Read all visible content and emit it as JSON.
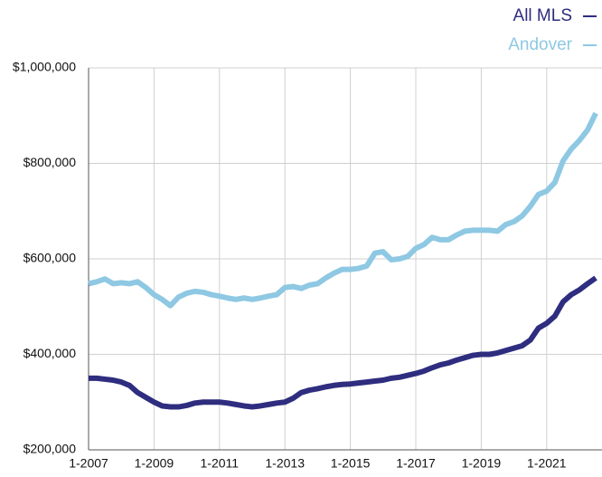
{
  "chart_data": {
    "type": "line",
    "categories": [
      "1-2007",
      null,
      null,
      null,
      null,
      null,
      null,
      null,
      "1-2009",
      null,
      null,
      null,
      null,
      null,
      null,
      null,
      "1-2011",
      null,
      null,
      null,
      null,
      null,
      null,
      null,
      "1-2013",
      null,
      null,
      null,
      null,
      null,
      null,
      null,
      "1-2015",
      null,
      null,
      null,
      null,
      null,
      null,
      null,
      "1-2017",
      null,
      null,
      null,
      null,
      null,
      null,
      null,
      "1-2019",
      null,
      null,
      null,
      null,
      null,
      null,
      null,
      "1-2021",
      null,
      null,
      null,
      null,
      null,
      null
    ],
    "series": [
      {
        "name": "All MLS",
        "color": "#2e2d7f",
        "values": [
          350000,
          350000,
          348000,
          346000,
          342000,
          335000,
          320000,
          310000,
          300000,
          292000,
          290000,
          290000,
          293000,
          298000,
          300000,
          300000,
          300000,
          298000,
          295000,
          292000,
          290000,
          292000,
          295000,
          298000,
          300000,
          308000,
          320000,
          325000,
          328000,
          332000,
          335000,
          337000,
          338000,
          340000,
          342000,
          344000,
          346000,
          350000,
          352000,
          356000,
          360000,
          365000,
          372000,
          378000,
          382000,
          388000,
          393000,
          398000,
          400000,
          400000,
          403000,
          408000,
          413000,
          418000,
          430000,
          455000,
          465000,
          480000,
          510000,
          525000,
          535000,
          548000,
          560000
        ]
      },
      {
        "name": "Andover",
        "color": "#8ec8e3",
        "values": [
          548000,
          552000,
          558000,
          548000,
          550000,
          548000,
          552000,
          540000,
          525000,
          515000,
          502000,
          520000,
          528000,
          532000,
          530000,
          525000,
          522000,
          518000,
          515000,
          518000,
          515000,
          518000,
          522000,
          525000,
          540000,
          542000,
          538000,
          545000,
          548000,
          560000,
          570000,
          578000,
          578000,
          580000,
          585000,
          612000,
          615000,
          598000,
          600000,
          605000,
          622000,
          630000,
          645000,
          640000,
          640000,
          650000,
          658000,
          660000,
          660000,
          660000,
          658000,
          672000,
          678000,
          690000,
          710000,
          735000,
          742000,
          760000,
          805000,
          830000,
          848000,
          870000,
          905000
        ]
      }
    ],
    "ylim": [
      200000,
      1000000
    ],
    "yticks": [
      {
        "value": 200000,
        "label": "$200,000"
      },
      {
        "value": 400000,
        "label": "$400,000"
      },
      {
        "value": 600000,
        "label": "$600,000"
      },
      {
        "value": 800000,
        "label": "$800,000"
      },
      {
        "value": 1000000,
        "label": "$1,000,000"
      }
    ],
    "grid": true,
    "legend": "top-right"
  }
}
